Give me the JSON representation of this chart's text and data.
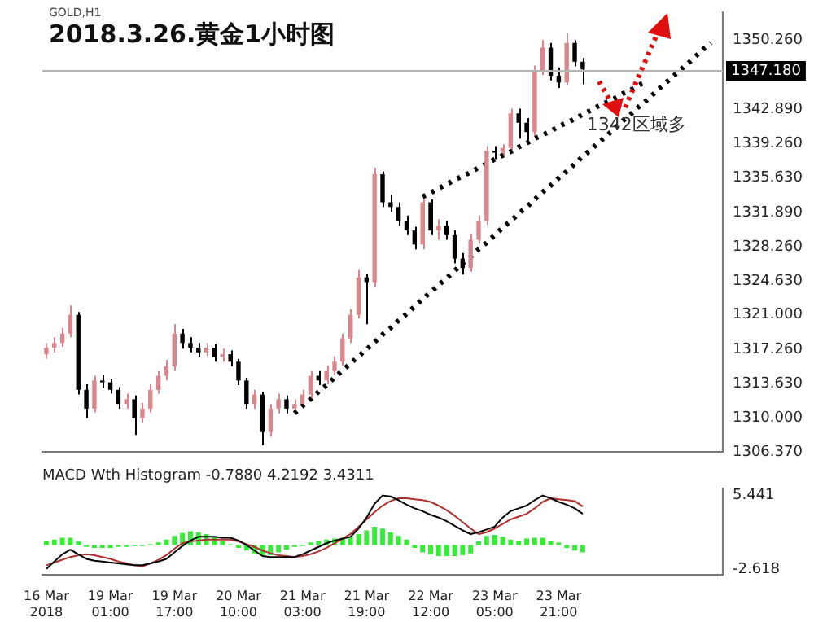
{
  "chart_data": [
    {
      "type": "candlestick",
      "title": "2018.3.26.黄金1小时图",
      "subtitle": "GOLD,H1",
      "categories": [
        null,
        null,
        null,
        null,
        null,
        null,
        null,
        null,
        null,
        null,
        null,
        null,
        null,
        null,
        null,
        null,
        null,
        null,
        null,
        null,
        null,
        null,
        null,
        null,
        null,
        null,
        null,
        null,
        null,
        null,
        null,
        null,
        null,
        null,
        null,
        null,
        null,
        null,
        null,
        null,
        null,
        null,
        null,
        null,
        null,
        null,
        null,
        null,
        null,
        null,
        null,
        null,
        null,
        null,
        null,
        null,
        null,
        null,
        null,
        null,
        null,
        null,
        null,
        null,
        null,
        null,
        null,
        null,
        null,
        null,
        null,
        null,
        null,
        null,
        null,
        null,
        null,
        null,
        null,
        null,
        null,
        null,
        null,
        null,
        null
      ],
      "ohlc": [
        [
          1316.8,
          1318,
          1316.3,
          1317.5
        ],
        [
          1317.5,
          1318.6,
          1317,
          1318
        ],
        [
          1318,
          1319.6,
          1317.6,
          1319
        ],
        [
          1319,
          1322,
          1318.6,
          1321
        ],
        [
          1321,
          1321.3,
          1312.5,
          1313
        ],
        [
          1313,
          1313.6,
          1310,
          1311
        ],
        [
          1311,
          1314.5,
          1310.6,
          1314
        ],
        [
          1314,
          1314.6,
          1313.2,
          1313.8
        ],
        [
          1313.8,
          1314.2,
          1312.6,
          1313
        ],
        [
          1313,
          1313.3,
          1311,
          1311.5
        ],
        [
          1311.5,
          1312.6,
          1311,
          1312
        ],
        [
          1312,
          1312.4,
          1308.2,
          1310
        ],
        [
          1310,
          1311.6,
          1309.5,
          1311
        ],
        [
          1311,
          1313.6,
          1310.6,
          1313
        ],
        [
          1313,
          1315,
          1312.6,
          1314.5
        ],
        [
          1314.5,
          1316.2,
          1314,
          1315.5
        ],
        [
          1315.5,
          1320,
          1315,
          1319
        ],
        [
          1319,
          1319.5,
          1317.4,
          1318
        ],
        [
          1318,
          1318.6,
          1317,
          1317.5
        ],
        [
          1317.5,
          1318,
          1316.5,
          1317
        ],
        [
          1317,
          1318,
          1316.6,
          1317.5
        ],
        [
          1317.5,
          1317.9,
          1316,
          1316.5
        ],
        [
          1316.5,
          1317.4,
          1316,
          1316.8
        ],
        [
          1316.8,
          1317.2,
          1315.5,
          1316
        ],
        [
          1316,
          1316.3,
          1313.5,
          1314
        ],
        [
          1314,
          1314.3,
          1311,
          1311.5
        ],
        [
          1311.5,
          1313,
          1311,
          1312.5
        ],
        [
          1312.5,
          1312.8,
          1307.1,
          1308.5
        ],
        [
          1308.5,
          1311.5,
          1308,
          1311
        ],
        [
          1311,
          1312.6,
          1310.5,
          1312
        ],
        [
          1312,
          1312.4,
          1310.5,
          1311
        ],
        [
          1311,
          1312,
          1310.6,
          1311.5
        ],
        [
          1311.5,
          1313,
          1311,
          1312.5
        ],
        [
          1312.5,
          1315,
          1312,
          1314.5
        ],
        [
          1314.5,
          1315,
          1313.5,
          1314
        ],
        [
          1314,
          1315.6,
          1313.6,
          1315
        ],
        [
          1315,
          1316.6,
          1314.6,
          1316
        ],
        [
          1316,
          1319,
          1315.6,
          1318.5
        ],
        [
          1318.5,
          1321.6,
          1318,
          1321
        ],
        [
          1321,
          1325.8,
          1320.6,
          1325
        ],
        [
          1325,
          1325.4,
          1320,
          1324.5
        ],
        [
          1324.5,
          1336.7,
          1324,
          1336
        ],
        [
          1336,
          1336.3,
          1332.5,
          1333
        ],
        [
          1333,
          1333.8,
          1332,
          1332.5
        ],
        [
          1332.5,
          1333,
          1330.5,
          1331
        ],
        [
          1331,
          1331.6,
          1329.5,
          1330
        ],
        [
          1330,
          1330.4,
          1328,
          1328.5
        ],
        [
          1328.5,
          1333.6,
          1328,
          1333
        ],
        [
          1333,
          1333.3,
          1329.5,
          1330
        ],
        [
          1330,
          1331.2,
          1329,
          1330.5
        ],
        [
          1330.5,
          1331,
          1329,
          1329.5
        ],
        [
          1329.5,
          1330,
          1326.5,
          1327
        ],
        [
          1327,
          1327.6,
          1325.3,
          1326
        ],
        [
          1326,
          1329.6,
          1325.6,
          1329
        ],
        [
          1329,
          1331.6,
          1328.6,
          1331
        ],
        [
          1331,
          1339,
          1330.6,
          1338.5
        ],
        [
          1338.5,
          1339,
          1337.6,
          1338.3
        ],
        [
          1338.3,
          1339.2,
          1337.8,
          1338.8
        ],
        [
          1338.8,
          1343,
          1338.4,
          1342.5
        ],
        [
          1342.5,
          1343,
          1339.8,
          1341.5
        ],
        [
          1341.5,
          1342,
          1339.6,
          1340.5
        ],
        [
          1340.5,
          1347.6,
          1340,
          1347
        ],
        [
          1347,
          1350.3,
          1346.6,
          1349.5
        ],
        [
          1349.5,
          1350,
          1346,
          1346.5
        ],
        [
          1346.5,
          1347.4,
          1345.2,
          1345.8
        ],
        [
          1345.8,
          1351.1,
          1345.5,
          1350
        ],
        [
          1350,
          1350.3,
          1347.5,
          1348
        ],
        [
          1348,
          1348.4,
          1345.6,
          1347.18
        ],
        null,
        null,
        null,
        null,
        null,
        null,
        null,
        null,
        null,
        null,
        null,
        null,
        null,
        null,
        null,
        null,
        null
      ],
      "colors": [
        "#d9878c",
        "#d9878c",
        "#d9878c",
        "#d9878c",
        "#000000",
        "#000000",
        "#d9878c",
        "#000000",
        "#000000",
        "#000000",
        "#d9878c",
        "#000000",
        "#d9878c",
        "#d9878c",
        "#d9878c",
        "#d9878c",
        "#d9878c",
        "#000000",
        "#000000",
        "#000000",
        "#d9878c",
        "#000000",
        "#d9878c",
        "#000000",
        "#000000",
        "#000000",
        "#d9878c",
        "#000000",
        "#d9878c",
        "#d9878c",
        "#000000",
        "#d9878c",
        "#d9878c",
        "#d9878c",
        "#000000",
        "#d9878c",
        "#d9878c",
        "#d9878c",
        "#d9878c",
        "#d9878c",
        "#000000",
        "#d9878c",
        "#000000",
        "#000000",
        "#000000",
        "#000000",
        "#000000",
        "#d9878c",
        "#000000",
        "#d9878c",
        "#000000",
        "#000000",
        "#000000",
        "#d9878c",
        "#d9878c",
        "#d9878c",
        "#000000",
        "#d9878c",
        "#d9878c",
        "#000000",
        "#000000",
        "#d9878c",
        "#d9878c",
        "#000000",
        "#000000",
        "#d9878c",
        "#000000",
        "#000000",
        null,
        null,
        null,
        null,
        null,
        null,
        null,
        null,
        null,
        null,
        null,
        null,
        null,
        null,
        null,
        null,
        null
      ],
      "ylim": [
        1306.37,
        1353.3
      ],
      "yticks": [
        {
          "value": 1306.37,
          "label": "1306.370"
        },
        {
          "value": 1310,
          "label": "1310.000"
        },
        {
          "value": 1313.63,
          "label": "1313.630"
        },
        {
          "value": 1317.26,
          "label": "1317.260"
        },
        {
          "value": 1321,
          "label": "1321.000"
        },
        {
          "value": 1324.63,
          "label": "1324.630"
        },
        {
          "value": 1328.26,
          "label": "1328.260"
        },
        {
          "value": 1331.89,
          "label": "1331.890"
        },
        {
          "value": 1335.63,
          "label": "1335.630"
        },
        {
          "value": 1339.26,
          "label": "1339.260"
        },
        {
          "value": 1342.89,
          "label": "1342.890"
        },
        {
          "value": 1350.26,
          "label": "1350.260"
        }
      ],
      "series": [
        {
          "type": "line",
          "color": "#000000",
          "line_style": "dotted",
          "values": [
            null,
            null,
            null,
            null,
            null,
            null,
            null,
            null,
            null,
            null,
            null,
            null,
            null,
            null,
            null,
            null,
            null,
            null,
            null,
            null,
            null,
            null,
            null,
            null,
            null,
            null,
            null,
            null,
            null,
            null,
            null,
            1310.5,
            1311.3,
            1312.0,
            1312.8,
            1313.5,
            1314.3,
            1315.1,
            1315.8,
            1316.6,
            1317.3,
            1318.1,
            1318.9,
            1319.6,
            1320.4,
            1321.1,
            1321.9,
            1322.7,
            1323.4,
            1324.2,
            1324.9,
            1325.7,
            1326.5,
            1327.2,
            1328.0,
            1328.7,
            1329.5,
            1330.3,
            1331.0,
            1331.8,
            1332.5,
            1333.3,
            1334.1,
            1334.8,
            1335.6,
            1336.3,
            1337.1,
            1337.9,
            1338.6,
            1339.4,
            1340.1,
            1340.9,
            1341.7,
            1342.4,
            1343.2,
            1343.9,
            1344.7,
            1345.5,
            1346.2,
            1347.0,
            1347.7,
            1348.5,
            1349.3,
            1350.0,
            null
          ]
        },
        {
          "type": "line",
          "color": "#000000",
          "line_style": "dotted",
          "values": [
            null,
            null,
            null,
            null,
            null,
            null,
            null,
            null,
            null,
            null,
            null,
            null,
            null,
            null,
            null,
            null,
            null,
            null,
            null,
            null,
            null,
            null,
            null,
            null,
            null,
            null,
            null,
            null,
            null,
            null,
            null,
            null,
            null,
            null,
            null,
            null,
            null,
            null,
            null,
            null,
            null,
            null,
            null,
            null,
            null,
            null,
            null,
            1333.6,
            1334.0,
            1334.5,
            1334.9,
            1335.4,
            1335.8,
            1336.2,
            1336.7,
            1337.1,
            1337.6,
            1338.0,
            1338.4,
            1338.9,
            1339.3,
            1339.8,
            1340.2,
            1340.6,
            1341.1,
            1341.5,
            1341.9,
            1342.4,
            1342.8,
            1343.3,
            1343.7,
            1344.1,
            1344.6,
            1345.0,
            1345.5,
            1345.9,
            null,
            null,
            null,
            null,
            null,
            null,
            null,
            null,
            null
          ]
        }
      ],
      "ref_lines": [
        {
          "axis": "y",
          "value": 1347.18,
          "label": "1347.180",
          "color": "#b4b4b4"
        }
      ],
      "annotations": [
        "1342区域多"
      ],
      "tick_labels": "y"
    },
    {
      "type": "bar",
      "title": "MACD Wth Histogram -0.7880 4.2192 3.4311",
      "categories": [
        "16 Mar 2018",
        null,
        null,
        null,
        null,
        null,
        null,
        null,
        "19 Mar 01:00",
        null,
        null,
        null,
        null,
        null,
        null,
        null,
        "19 Mar 17:00",
        null,
        null,
        null,
        null,
        null,
        null,
        null,
        "20 Mar 10:00",
        null,
        null,
        null,
        null,
        null,
        null,
        null,
        "21 Mar 03:00",
        null,
        null,
        null,
        null,
        null,
        null,
        null,
        "21 Mar 19:00",
        null,
        null,
        null,
        null,
        null,
        null,
        null,
        "22 Mar 12:00",
        null,
        null,
        null,
        null,
        null,
        null,
        null,
        "23 Mar 05:00",
        null,
        null,
        null,
        null,
        null,
        null,
        null,
        "23 Mar 21:00",
        null,
        null,
        null,
        null,
        null,
        null,
        null,
        null,
        null,
        null,
        null,
        null,
        null,
        null,
        null,
        null,
        null,
        null,
        null,
        null
      ],
      "series": [
        {
          "type": "bar",
          "color": "#33ee33",
          "values": [
            0.5,
            0.6,
            0.8,
            0.8,
            0.4,
            -0.2,
            -0.3,
            -0.3,
            -0.3,
            -0.2,
            -0.2,
            -0.1,
            -0.1,
            0.1,
            0.3,
            0.6,
            1.0,
            1.3,
            1.5,
            1.4,
            1.2,
            0.9,
            0.5,
            0.1,
            -0.3,
            -0.6,
            -0.9,
            -1.2,
            -1.1,
            -0.8,
            -0.5,
            -0.2,
            -0.1,
            0.3,
            0.5,
            0.6,
            0.7,
            0.8,
            0.9,
            1.2,
            1.6,
            2.0,
            1.8,
            1.4,
            1.0,
            0.6,
            -0.3,
            -0.8,
            -1.0,
            -1.2,
            -1.2,
            -1.2,
            -1.1,
            -0.9,
            0.4,
            1.0,
            1.1,
            0.9,
            0.6,
            0.5,
            0.7,
            0.8,
            0.8,
            0.5,
            0.3,
            -0.3,
            -0.6,
            -0.8,
            null,
            null,
            null,
            null,
            null,
            null,
            null,
            null,
            null,
            null,
            null,
            null,
            null,
            null,
            null,
            null,
            null
          ]
        },
        {
          "type": "line",
          "color": "#000000",
          "values": [
            -2.6,
            -1.8,
            -1.0,
            -0.5,
            -1.0,
            -1.5,
            -1.7,
            -1.8,
            -1.9,
            -2.0,
            -2.1,
            -2.2,
            -2.2,
            -2.0,
            -1.8,
            -1.5,
            -0.8,
            -0.1,
            0.5,
            0.9,
            0.9,
            0.9,
            0.8,
            0.8,
            0.5,
            0.0,
            -0.6,
            -1.2,
            -1.3,
            -1.3,
            -1.3,
            -1.3,
            -1.0,
            -0.6,
            -0.2,
            0.2,
            0.5,
            0.7,
            0.9,
            1.8,
            3.0,
            4.5,
            5.4,
            5.3,
            4.9,
            4.4,
            4.0,
            3.7,
            3.3,
            3.0,
            2.6,
            2.1,
            1.6,
            1.2,
            1.4,
            1.7,
            2.0,
            3.0,
            3.7,
            4.0,
            4.3,
            4.9,
            5.4,
            5.1,
            4.7,
            4.4,
            4.0,
            3.4,
            null,
            null,
            null,
            null,
            null,
            null,
            null,
            null,
            null,
            null,
            null,
            null,
            null,
            null,
            null,
            null,
            null
          ]
        },
        {
          "type": "line",
          "color": "#b03030",
          "values": [
            -2.2,
            -1.9,
            -1.6,
            -1.3,
            -1.1,
            -1.0,
            -1.1,
            -1.3,
            -1.5,
            -1.8,
            -2.0,
            -2.2,
            -2.3,
            -2.0,
            -1.6,
            -1.1,
            -0.4,
            0.2,
            0.4,
            0.5,
            0.6,
            0.6,
            0.6,
            0.6,
            0.4,
            0.1,
            -0.2,
            -0.6,
            -0.9,
            -1.1,
            -1.2,
            -1.3,
            -1.2,
            -1.0,
            -0.7,
            -0.3,
            0.2,
            0.7,
            1.2,
            2.0,
            2.8,
            3.6,
            4.3,
            4.8,
            5.1,
            5.1,
            5.0,
            4.9,
            4.7,
            4.3,
            3.8,
            3.2,
            2.5,
            1.8,
            1.2,
            1.4,
            1.8,
            2.3,
            2.8,
            3.1,
            3.4,
            4.0,
            4.7,
            5.1,
            5.0,
            4.9,
            4.8,
            4.2,
            null,
            null,
            null,
            null,
            null,
            null,
            null,
            null,
            null,
            null,
            null,
            null,
            null,
            null,
            null,
            null,
            null
          ]
        }
      ],
      "ylim": [
        -3.2,
        6.2
      ],
      "yticks": [
        {
          "value": 5.441,
          "label": "5.441"
        },
        {
          "value": -2.618,
          "label": "-2.618"
        }
      ],
      "marker": "none"
    }
  ]
}
